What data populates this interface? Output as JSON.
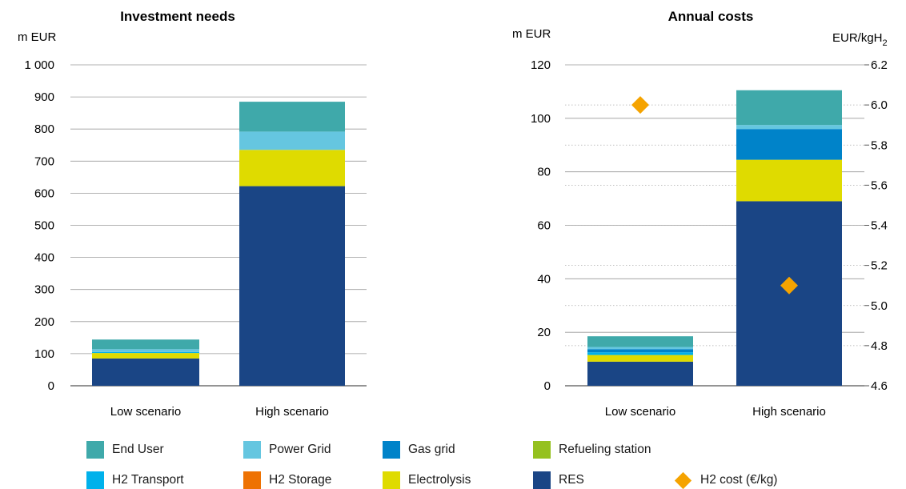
{
  "chart_data": [
    {
      "type": "bar",
      "stacked": true,
      "title": "Investment needs",
      "ylabel": "m EUR",
      "ylim": [
        0,
        1000
      ],
      "yticks": [
        {
          "value": 0,
          "label": "0"
        },
        {
          "value": 100,
          "label": "100"
        },
        {
          "value": 200,
          "label": "200"
        },
        {
          "value": 300,
          "label": "300"
        },
        {
          "value": 400,
          "label": "400"
        },
        {
          "value": 500,
          "label": "500"
        },
        {
          "value": 600,
          "label": "600"
        },
        {
          "value": 700,
          "label": "700"
        },
        {
          "value": 800,
          "label": "800"
        },
        {
          "value": 900,
          "label": "900"
        },
        {
          "value": 1000,
          "label": "1 000"
        }
      ],
      "grid": true,
      "categories": [
        "Low scenario",
        "High scenario"
      ],
      "series": [
        {
          "name": "RES",
          "color": "#1a4585",
          "values": [
            85,
            622
          ]
        },
        {
          "name": "H2 Storage",
          "color": "#ee7203",
          "values": [
            0,
            0
          ]
        },
        {
          "name": "Electrolysis",
          "color": "#dfdb00",
          "values": [
            17,
            113
          ]
        },
        {
          "name": "H2 Transport",
          "color": "#00b1eb",
          "values": [
            3,
            0
          ]
        },
        {
          "name": "Refueling station",
          "color": "#95c11f",
          "values": [
            0,
            0
          ]
        },
        {
          "name": "Gas grid",
          "color": "#0083c9",
          "values": [
            0,
            0
          ]
        },
        {
          "name": "Power Grid",
          "color": "#65c6e0",
          "values": [
            9,
            57
          ]
        },
        {
          "name": "End User",
          "color": "#3fa9aa",
          "values": [
            30,
            93
          ]
        }
      ]
    },
    {
      "type": "bar",
      "stacked": true,
      "title": "Annual costs",
      "ylabel": "m EUR",
      "y2label": "EUR/kgH",
      "y2label_sub": "2",
      "ylim": [
        0,
        120
      ],
      "y2lim": [
        4.6,
        6.2
      ],
      "yticks": [
        {
          "value": 0,
          "label": "0"
        },
        {
          "value": 20,
          "label": "20"
        },
        {
          "value": 40,
          "label": "40"
        },
        {
          "value": 60,
          "label": "60"
        },
        {
          "value": 80,
          "label": "80"
        },
        {
          "value": 100,
          "label": "100"
        },
        {
          "value": 120,
          "label": "120"
        }
      ],
      "y2ticks": [
        {
          "value": 4.6,
          "label": "4.6"
        },
        {
          "value": 4.8,
          "label": "4.8"
        },
        {
          "value": 5.0,
          "label": "5.0"
        },
        {
          "value": 5.2,
          "label": "5.2"
        },
        {
          "value": 5.4,
          "label": "5.4"
        },
        {
          "value": 5.6,
          "label": "5.6"
        },
        {
          "value": 5.8,
          "label": "5.8"
        },
        {
          "value": 6.0,
          "label": "6.0"
        },
        {
          "value": 6.2,
          "label": "6.2"
        }
      ],
      "grid": true,
      "categories": [
        "Low scenario",
        "High scenario"
      ],
      "series": [
        {
          "name": "RES",
          "color": "#1a4585",
          "values": [
            9,
            69
          ]
        },
        {
          "name": "H2 Storage",
          "color": "#ee7203",
          "values": [
            0,
            0
          ]
        },
        {
          "name": "Electrolysis",
          "color": "#dfdb00",
          "values": [
            2.5,
            15.5
          ]
        },
        {
          "name": "H2 Transport",
          "color": "#00b1eb",
          "values": [
            1,
            0
          ]
        },
        {
          "name": "Refueling station",
          "color": "#95c11f",
          "values": [
            0,
            0
          ]
        },
        {
          "name": "Gas grid",
          "color": "#0083c9",
          "values": [
            1.2,
            11.5
          ]
        },
        {
          "name": "Power Grid",
          "color": "#65c6e0",
          "values": [
            0.8,
            1.5
          ]
        },
        {
          "name": "End User",
          "color": "#3fa9aa",
          "values": [
            4,
            13
          ]
        }
      ],
      "line_series": {
        "name": "H2 cost (€/kg)",
        "color": "#f5a300",
        "axis": "right",
        "marker": "diamond",
        "values": [
          6.0,
          5.1
        ]
      }
    }
  ],
  "legend": [
    {
      "label": "End User",
      "color": "#3fa9aa",
      "shape": "square"
    },
    {
      "label": "Power Grid",
      "color": "#65c6e0",
      "shape": "square"
    },
    {
      "label": "Gas grid",
      "color": "#0083c9",
      "shape": "square"
    },
    {
      "label": "Refueling station",
      "color": "#95c11f",
      "shape": "square"
    },
    {
      "label": "H2 Transport",
      "color": "#00b1eb",
      "shape": "square"
    },
    {
      "label": "H2 Storage",
      "color": "#ee7203",
      "shape": "square"
    },
    {
      "label": "Electrolysis",
      "color": "#dfdb00",
      "shape": "square"
    },
    {
      "label": "RES",
      "color": "#1a4585",
      "shape": "square"
    },
    {
      "label": "H2 cost (€/kg)",
      "color": "#f5a300",
      "shape": "diamond"
    }
  ]
}
